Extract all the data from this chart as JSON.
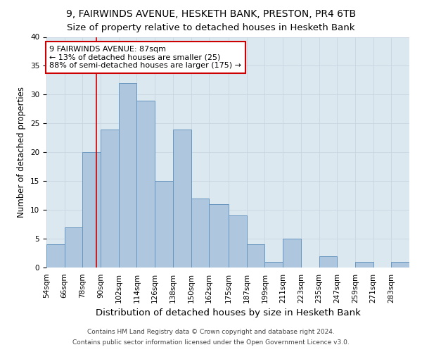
{
  "title1": "9, FAIRWINDS AVENUE, HESKETH BANK, PRESTON, PR4 6TB",
  "title2": "Size of property relative to detached houses in Hesketh Bank",
  "xlabel": "Distribution of detached houses by size in Hesketh Bank",
  "ylabel": "Number of detached properties",
  "footnote1": "Contains HM Land Registry data © Crown copyright and database right 2024.",
  "footnote2": "Contains public sector information licensed under the Open Government Licence v3.0.",
  "annotation_title": "9 FAIRWINDS AVENUE: 87sqm",
  "annotation_line1": "← 13% of detached houses are smaller (25)",
  "annotation_line2": "88% of semi-detached houses are larger (175) →",
  "property_size": 87,
  "bin_edges": [
    54,
    66,
    78,
    90,
    102,
    114,
    126,
    138,
    150,
    162,
    175,
    187,
    199,
    211,
    223,
    235,
    247,
    259,
    271,
    283,
    295
  ],
  "bar_heights": [
    4,
    7,
    20,
    24,
    32,
    29,
    15,
    24,
    12,
    11,
    9,
    4,
    1,
    5,
    0,
    2,
    0,
    1,
    0,
    1
  ],
  "bar_color": "#aec6de",
  "bar_edge_color": "#6896be",
  "vline_color": "#cc0000",
  "vline_x": 87,
  "annotation_box_color": "#ffffff",
  "annotation_box_edge_color": "#cc0000",
  "ylim": [
    0,
    40
  ],
  "yticks": [
    0,
    5,
    10,
    15,
    20,
    25,
    30,
    35,
    40
  ],
  "grid_color": "#c8d4e0",
  "bg_color": "#dce8f0",
  "title1_fontsize": 10,
  "title2_fontsize": 9.5,
  "xlabel_fontsize": 9.5,
  "ylabel_fontsize": 8.5,
  "annotation_fontsize": 8,
  "tick_fontsize": 7.5,
  "footnote_fontsize": 6.5
}
